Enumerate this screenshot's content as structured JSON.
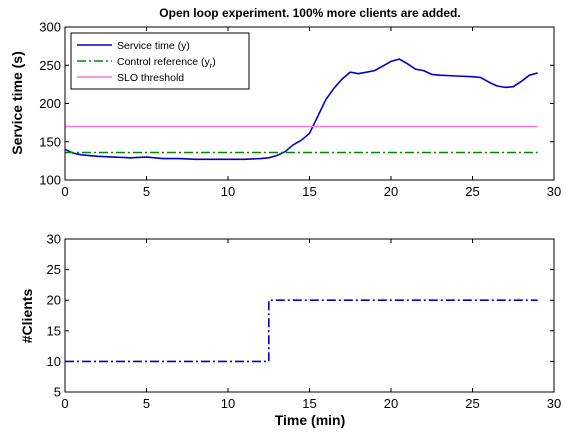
{
  "chart_data": [
    {
      "type": "line",
      "title": "Open loop experiment. 100% more clients are added.",
      "xlabel": "",
      "ylabel": "Service time (s)",
      "xlim": [
        0,
        30
      ],
      "ylim": [
        100,
        300
      ],
      "xticks": [
        0,
        5,
        10,
        15,
        20,
        25,
        30
      ],
      "yticks": [
        100,
        150,
        200,
        250,
        300
      ],
      "legend_position": "top-left",
      "series": [
        {
          "name": "Service time (y)",
          "style": "solid",
          "color": "#0000cc",
          "x": [
            0,
            0.5,
            1,
            2,
            3,
            4,
            5,
            6,
            7,
            8,
            9,
            10,
            11,
            12,
            12.5,
            13,
            13.5,
            14,
            14.5,
            15,
            15.5,
            16,
            16.5,
            17,
            17.5,
            18,
            19,
            20,
            20.5,
            21,
            21.5,
            22,
            22.5,
            23,
            24,
            25,
            25.5,
            26,
            26.5,
            27,
            27.5,
            28,
            28.5,
            29
          ],
          "y": [
            140,
            135,
            133,
            131,
            130,
            129,
            130,
            128,
            128,
            127,
            127,
            127,
            127,
            128,
            129,
            132,
            137,
            146,
            152,
            161,
            183,
            205,
            220,
            232,
            241,
            239,
            243,
            255,
            258,
            252,
            245,
            243,
            238,
            237,
            236,
            235,
            234,
            228,
            223,
            221,
            222,
            229,
            237,
            240
          ]
        },
        {
          "name": "Control reference (y",
          "name_sub": "r",
          "name_suffix": ")",
          "style": "dashdot",
          "color": "#008800",
          "x": [
            0,
            29
          ],
          "y": [
            136,
            136
          ]
        },
        {
          "name": "SLO threshold",
          "style": "solid",
          "color": "#ff77cc",
          "x": [
            0,
            29
          ],
          "y": [
            170,
            170
          ]
        }
      ]
    },
    {
      "type": "line",
      "title": "",
      "xlabel": "Time (min)",
      "ylabel": "#Clients",
      "xlim": [
        0,
        30
      ],
      "ylim": [
        5,
        30
      ],
      "xticks": [
        0,
        5,
        10,
        15,
        20,
        25,
        30
      ],
      "yticks": [
        5,
        10,
        15,
        20,
        25,
        30
      ],
      "series": [
        {
          "style": "dashdot",
          "color": "#0000cc",
          "x": [
            0,
            12.5,
            12.5,
            29
          ],
          "y": [
            10,
            10,
            20,
            20
          ]
        }
      ]
    }
  ]
}
